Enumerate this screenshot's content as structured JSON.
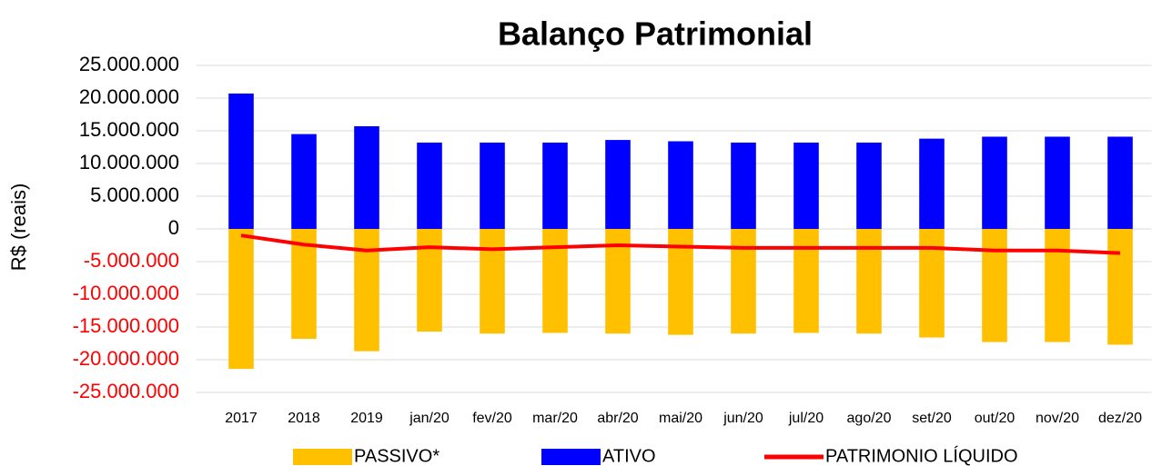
{
  "chart_data": {
    "type": "bar_line",
    "title": "Balanço Patrimonial",
    "y_label": "R$ (reais)",
    "categories": [
      "2017",
      "2018",
      "2019",
      "jan/20",
      "fev/20",
      "mar/20",
      "abr/20",
      "mai/20",
      "jun/20",
      "jul/20",
      "ago/20",
      "set/20",
      "out/20",
      "nov/20",
      "dez/20"
    ],
    "series": [
      {
        "name": "PASSIVO*",
        "type": "bar",
        "color": "#ffc000",
        "values": [
          -21400000,
          -16800000,
          -18700000,
          -15700000,
          -16000000,
          -15900000,
          -16000000,
          -16200000,
          -16000000,
          -15900000,
          -16000000,
          -16600000,
          -17300000,
          -17300000,
          -17700000
        ]
      },
      {
        "name": "ATIVO",
        "type": "bar",
        "color": "#0000ff",
        "values": [
          20700000,
          14500000,
          15700000,
          13200000,
          13200000,
          13200000,
          13600000,
          13400000,
          13200000,
          13200000,
          13200000,
          13800000,
          14100000,
          14100000,
          14100000
        ]
      },
      {
        "name": "PATRIMONIO LÍQUIDO",
        "type": "line",
        "color": "#ff0000",
        "values": [
          -1000000,
          -2400000,
          -3300000,
          -2800000,
          -3100000,
          -2800000,
          -2500000,
          -2700000,
          -2900000,
          -2900000,
          -2900000,
          -2900000,
          -3300000,
          -3300000,
          -3700000
        ]
      }
    ],
    "ylim": [
      -25000000,
      25000000
    ],
    "yticks": [
      {
        "value": -25000000,
        "label": "-25.000.000"
      },
      {
        "value": -20000000,
        "label": "-20.000.000"
      },
      {
        "value": -15000000,
        "label": "-15.000.000"
      },
      {
        "value": -10000000,
        "label": "-10.000.000"
      },
      {
        "value": -5000000,
        "label": "-5.000.000"
      },
      0,
      {
        "value": 5000000,
        "label": "5.000.000"
      },
      {
        "value": 10000000,
        "label": "10.000.000"
      },
      {
        "value": 15000000,
        "label": "15.000.000"
      },
      {
        "value": 20000000,
        "label": "20.000.000"
      },
      {
        "value": 25000000,
        "label": "25.000.000"
      }
    ],
    "negative_tick_color": "#ff0000",
    "grid": true,
    "legend": "bottom"
  }
}
